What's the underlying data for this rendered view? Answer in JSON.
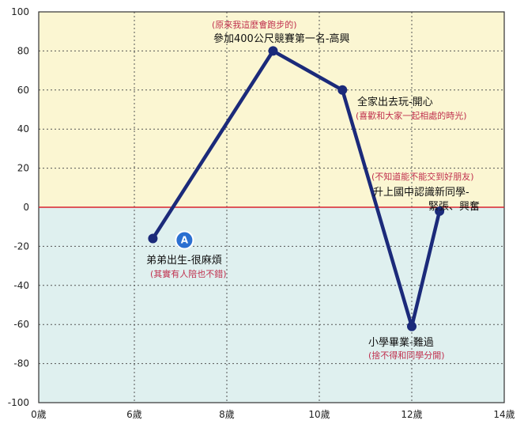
{
  "chart_data": {
    "type": "line",
    "title": "",
    "xlabel": "",
    "ylabel": "",
    "xlim": [
      0,
      14
    ],
    "ylim": [
      -100,
      100
    ],
    "x_ticks": [
      {
        "value": 0,
        "label": "0歲"
      },
      {
        "value": 6,
        "label": "6歲"
      },
      {
        "value": 8,
        "label": "8歲"
      },
      {
        "value": 10,
        "label": "10歲"
      },
      {
        "value": 12,
        "label": "12歲"
      },
      {
        "value": 14,
        "label": "14歲"
      }
    ],
    "y_ticks": [
      100,
      80,
      60,
      40,
      20,
      0,
      -20,
      -40,
      -60,
      -80,
      -100
    ],
    "grid": true,
    "series": [
      {
        "color": "#1b2a7a",
        "points": [
          {
            "x": 6.4,
            "y": -16
          },
          {
            "x": 9,
            "y": 80
          },
          {
            "x": 10.5,
            "y": 60
          },
          {
            "x": 12,
            "y": -61
          },
          {
            "x": 12.6,
            "y": -2
          }
        ]
      }
    ],
    "zero_line_color": "#d9232e",
    "positive_bg": "#fbf6d2",
    "negative_bg": "#dff0ef",
    "marker": {
      "label": "A",
      "color": "#2b6fd1"
    },
    "annotations": [
      {
        "point": 0,
        "main": "弟弟出生-很麻煩",
        "sub": "(其實有人陪也不錯)"
      },
      {
        "point": 1,
        "main": "參加400公尺競賽第一名-高興",
        "sub": "(原來我這麼會跑步的)"
      },
      {
        "point": 2,
        "main": "全家出去玩-開心",
        "sub": "(喜歡和大家一起相處的時光)"
      },
      {
        "point": 3,
        "main": "小學畢業-難過",
        "sub": "(捨不得和同學分開)"
      },
      {
        "point": 4,
        "main": "升上國中認識新同學-",
        "main2": "緊張、興奮",
        "sub": "(不知道能不能交到好朋友)"
      }
    ]
  }
}
